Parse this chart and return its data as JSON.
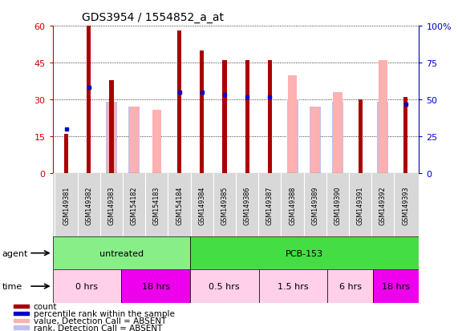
{
  "title": "GDS3954 / 1554852_a_at",
  "samples": [
    "GSM149381",
    "GSM149382",
    "GSM149383",
    "GSM154182",
    "GSM154183",
    "GSM154184",
    "GSM149384",
    "GSM149385",
    "GSM149386",
    "GSM149387",
    "GSM149388",
    "GSM149389",
    "GSM149390",
    "GSM149391",
    "GSM149392",
    "GSM149393"
  ],
  "count_values": [
    16,
    60,
    38,
    null,
    null,
    58,
    50,
    46,
    46,
    46,
    null,
    null,
    null,
    30,
    null,
    31
  ],
  "rank_values": [
    18,
    35,
    null,
    null,
    null,
    33,
    33,
    32,
    31,
    31,
    null,
    null,
    null,
    null,
    null,
    28
  ],
  "absent_value_bars": [
    null,
    null,
    29,
    27,
    26,
    null,
    null,
    null,
    null,
    null,
    40,
    27,
    33,
    null,
    46,
    null
  ],
  "absent_rank_bars": [
    null,
    null,
    29,
    27,
    null,
    null,
    null,
    null,
    null,
    null,
    30,
    27,
    29,
    null,
    29,
    null
  ],
  "ylim_left": [
    0,
    60
  ],
  "ylim_right": [
    0,
    100
  ],
  "yticks_left": [
    0,
    15,
    30,
    45,
    60
  ],
  "yticks_right": [
    0,
    25,
    50,
    75,
    100
  ],
  "bar_color_present": "#AA0000",
  "bar_color_absent_value": "#FFB0B0",
  "bar_color_absent_rank": "#C0C0F0",
  "dot_color_rank": "#0000CC",
  "agent_data": [
    {
      "label": "untreated",
      "start": 0,
      "end": 6,
      "color": "#88EE88"
    },
    {
      "label": "PCB-153",
      "start": 6,
      "end": 16,
      "color": "#44DD44"
    }
  ],
  "time_data": [
    {
      "label": "0 hrs",
      "start": 0,
      "end": 3,
      "color": "#FFD0E8"
    },
    {
      "label": "18 hrs",
      "start": 3,
      "end": 6,
      "color": "#EE00EE"
    },
    {
      "label": "0.5 hrs",
      "start": 6,
      "end": 9,
      "color": "#FFD0E8"
    },
    {
      "label": "1.5 hrs",
      "start": 9,
      "end": 12,
      "color": "#FFD0E8"
    },
    {
      "label": "6 hrs",
      "start": 12,
      "end": 14,
      "color": "#FFD0E8"
    },
    {
      "label": "18 hrs",
      "start": 14,
      "end": 16,
      "color": "#EE00EE"
    }
  ],
  "axis_color_left": "#CC0000",
  "axis_color_right": "#0000CC",
  "legend_items": [
    {
      "color": "#AA0000",
      "label": "count"
    },
    {
      "color": "#0000CC",
      "label": "percentile rank within the sample"
    },
    {
      "color": "#FFB0B0",
      "label": "value, Detection Call = ABSENT"
    },
    {
      "color": "#C0C0F0",
      "label": "rank, Detection Call = ABSENT"
    }
  ]
}
